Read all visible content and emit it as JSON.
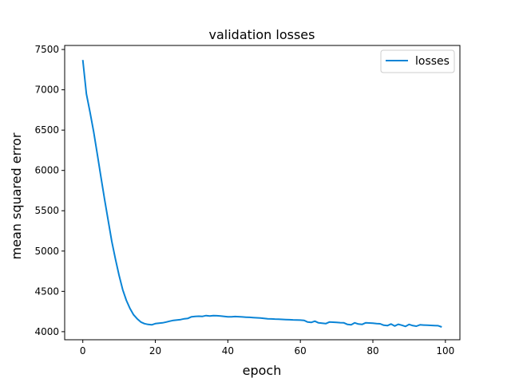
{
  "chart_data": {
    "type": "line",
    "title": "validation losses",
    "xlabel": "epoch",
    "ylabel": "mean squared error",
    "xlim": [
      -5,
      104
    ],
    "ylim": [
      3900,
      7550
    ],
    "x_ticks": [
      0,
      20,
      40,
      60,
      80,
      100
    ],
    "y_ticks": [
      4000,
      4500,
      5000,
      5500,
      6000,
      6500,
      7000,
      7500
    ],
    "grid": false,
    "legend_position": "top-right",
    "series": [
      {
        "name": "losses",
        "color": "#0a84d6",
        "x": [
          0,
          1,
          2,
          3,
          4,
          5,
          6,
          7,
          8,
          9,
          10,
          11,
          12,
          13,
          14,
          15,
          16,
          17,
          18,
          19,
          20,
          21,
          22,
          23,
          24,
          25,
          26,
          27,
          28,
          29,
          30,
          31,
          32,
          33,
          34,
          35,
          36,
          37,
          38,
          39,
          40,
          41,
          42,
          43,
          44,
          45,
          46,
          47,
          48,
          49,
          50,
          51,
          52,
          53,
          54,
          55,
          56,
          57,
          58,
          59,
          60,
          61,
          62,
          63,
          64,
          65,
          66,
          67,
          68,
          69,
          70,
          71,
          72,
          73,
          74,
          75,
          76,
          77,
          78,
          79,
          80,
          81,
          82,
          83,
          84,
          85,
          86,
          87,
          88,
          89,
          90,
          91,
          92,
          93,
          94,
          95,
          96,
          97,
          98,
          99
        ],
        "values": [
          7370,
          6950,
          6720,
          6480,
          6200,
          5920,
          5640,
          5380,
          5120,
          4900,
          4700,
          4520,
          4390,
          4290,
          4210,
          4160,
          4120,
          4100,
          4090,
          4085,
          4100,
          4105,
          4110,
          4120,
          4130,
          4140,
          4145,
          4150,
          4160,
          4165,
          4185,
          4190,
          4192,
          4190,
          4200,
          4195,
          4200,
          4198,
          4195,
          4190,
          4185,
          4185,
          4188,
          4186,
          4183,
          4180,
          4178,
          4175,
          4172,
          4170,
          4165,
          4160,
          4158,
          4156,
          4155,
          4152,
          4150,
          4148,
          4146,
          4145,
          4143,
          4140,
          4120,
          4115,
          4130,
          4110,
          4105,
          4100,
          4120,
          4118,
          4116,
          4112,
          4110,
          4090,
          4085,
          4110,
          4095,
          4090,
          4110,
          4108,
          4105,
          4100,
          4098,
          4080,
          4075,
          4095,
          4070,
          4092,
          4080,
          4065,
          4090,
          4075,
          4068,
          4085,
          4082,
          4080,
          4078,
          4076,
          4074,
          4058
        ]
      }
    ]
  }
}
